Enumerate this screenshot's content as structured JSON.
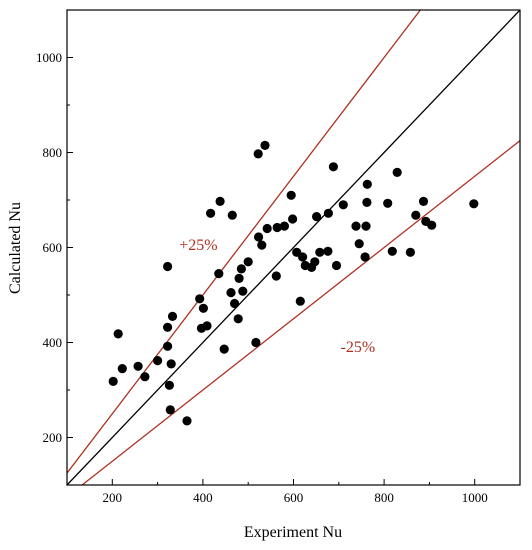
{
  "chart_data": {
    "type": "scatter",
    "title": "",
    "xlabel": "Experiment Nu",
    "ylabel": "Calculated Nu",
    "xlim": [
      100,
      1100
    ],
    "ylim": [
      100,
      1100
    ],
    "xticks": [
      200,
      400,
      600,
      800,
      1000
    ],
    "yticks": [
      200,
      400,
      600,
      800,
      1000
    ],
    "grid": false,
    "reference_lines": [
      {
        "label": "",
        "slope": 1.0,
        "color": "#000000"
      },
      {
        "label": "+25%",
        "slope": 1.25,
        "color": "#b03020"
      },
      {
        "label": "-25%",
        "slope": 0.75,
        "color": "#b03020"
      }
    ],
    "annotations": [
      {
        "text": "+25%",
        "x": 390,
        "y": 595
      },
      {
        "text": "-25%",
        "x": 742,
        "y": 380
      }
    ],
    "points": [
      [
        202,
        318
      ],
      [
        213,
        418
      ],
      [
        222,
        345
      ],
      [
        257,
        350
      ],
      [
        272,
        328
      ],
      [
        300,
        362
      ],
      [
        322,
        560
      ],
      [
        322,
        432
      ],
      [
        322,
        392
      ],
      [
        326,
        310
      ],
      [
        328,
        258
      ],
      [
        330,
        355
      ],
      [
        333,
        455
      ],
      [
        365,
        235
      ],
      [
        393,
        492
      ],
      [
        397,
        430
      ],
      [
        401,
        472
      ],
      [
        409,
        435
      ],
      [
        417,
        672
      ],
      [
        435,
        545
      ],
      [
        438,
        697
      ],
      [
        447,
        386
      ],
      [
        462,
        505
      ],
      [
        465,
        668
      ],
      [
        470,
        482
      ],
      [
        478,
        450
      ],
      [
        480,
        535
      ],
      [
        485,
        555
      ],
      [
        488,
        508
      ],
      [
        500,
        570
      ],
      [
        517,
        400
      ],
      [
        522,
        797
      ],
      [
        523,
        622
      ],
      [
        530,
        605
      ],
      [
        537,
        815
      ],
      [
        542,
        640
      ],
      [
        562,
        540
      ],
      [
        564,
        642
      ],
      [
        580,
        645
      ],
      [
        595,
        710
      ],
      [
        598,
        660
      ],
      [
        607,
        590
      ],
      [
        615,
        487
      ],
      [
        620,
        580
      ],
      [
        626,
        562
      ],
      [
        640,
        558
      ],
      [
        647,
        570
      ],
      [
        651,
        665
      ],
      [
        658,
        590
      ],
      [
        676,
        592
      ],
      [
        677,
        672
      ],
      [
        688,
        770
      ],
      [
        695,
        562
      ],
      [
        710,
        690
      ],
      [
        738,
        645
      ],
      [
        745,
        608
      ],
      [
        758,
        580
      ],
      [
        760,
        645
      ],
      [
        762,
        695
      ],
      [
        763,
        733
      ],
      [
        808,
        693
      ],
      [
        818,
        592
      ],
      [
        829,
        758
      ],
      [
        858,
        590
      ],
      [
        870,
        668
      ],
      [
        887,
        697
      ],
      [
        892,
        655
      ],
      [
        905,
        647
      ],
      [
        998,
        692
      ]
    ]
  }
}
